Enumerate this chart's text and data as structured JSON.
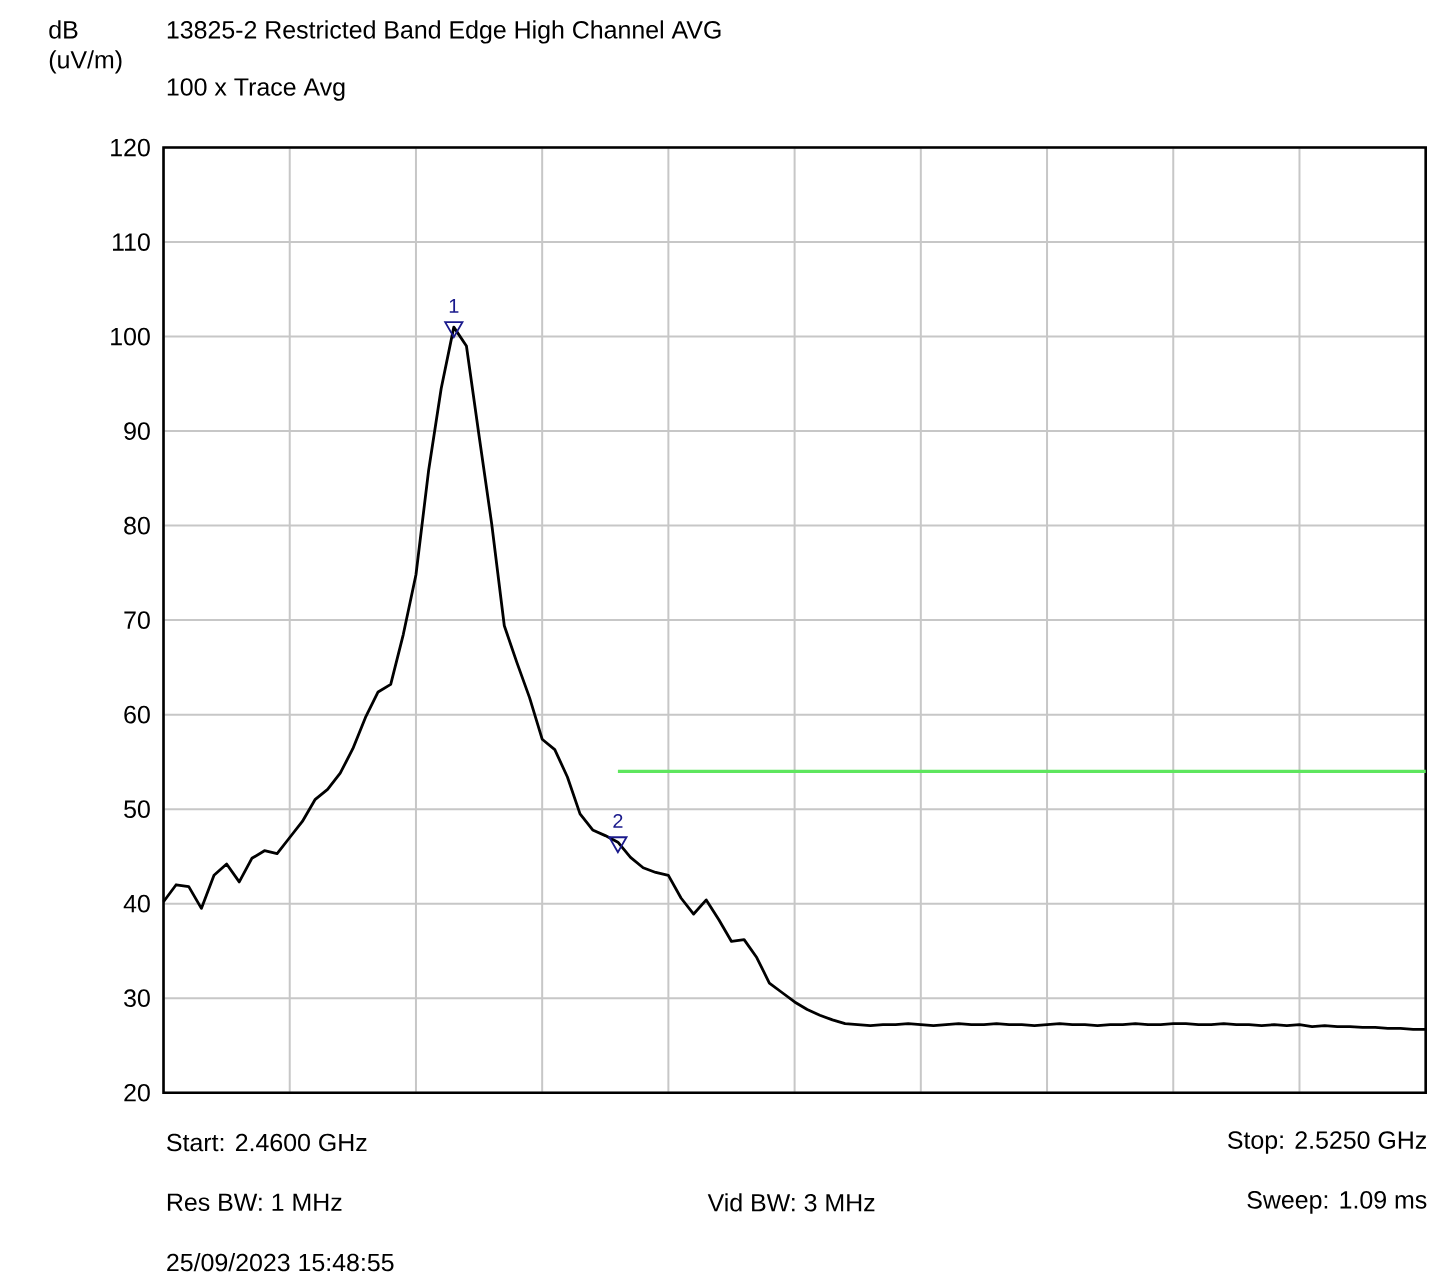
{
  "chart_data": {
    "type": "line",
    "title": "13825-2 Restricted Band Edge High Channel AVG",
    "subtitle": "100 x Trace Avg",
    "ylabel": "dB (uV/m)",
    "categories": [
      null,
      null,
      null,
      null,
      null,
      null,
      null,
      null,
      null,
      null,
      null,
      null,
      null,
      null,
      null,
      null,
      null,
      null,
      null,
      null,
      null,
      null,
      null,
      null,
      null,
      null,
      null,
      null,
      null,
      null,
      null,
      null,
      null,
      null,
      null,
      null,
      null,
      null,
      null,
      null,
      null,
      null,
      null,
      null,
      null,
      null,
      null,
      null,
      null,
      null,
      null,
      null,
      null,
      null,
      null,
      null,
      null,
      null,
      null,
      null,
      null,
      null,
      null,
      null,
      null,
      null,
      null,
      null,
      null,
      null,
      null,
      null,
      null,
      null,
      null,
      null,
      null,
      null,
      null,
      null,
      null,
      null,
      null,
      null,
      null,
      null,
      null,
      null,
      null,
      null,
      null,
      null,
      null,
      null,
      null,
      null,
      null,
      null,
      null,
      null,
      null
    ],
    "ylim": [
      20,
      120
    ],
    "yticks": [
      20,
      30,
      40,
      50,
      60,
      70,
      80,
      90,
      100,
      110,
      120
    ],
    "grid": true,
    "line_style": "solid",
    "series": [
      {
        "color": "#000000",
        "values": [
          40.2,
          42.0,
          41.8,
          39.5,
          43.0,
          44.2,
          42.3,
          44.8,
          45.6,
          45.3,
          47.0,
          48.7,
          51.0,
          52.1,
          53.8,
          56.4,
          59.7,
          62.4,
          63.2,
          68.5,
          74.8,
          85.8,
          94.5,
          101.0,
          99.0,
          89.5,
          80.2,
          69.4,
          65.5,
          61.8,
          57.4,
          56.3,
          53.4,
          49.5,
          47.8,
          47.2,
          46.5,
          44.9,
          43.8,
          43.3,
          43.0,
          40.6,
          38.9,
          40.4,
          38.3,
          36.0,
          36.2,
          34.3,
          31.6,
          30.6,
          29.6,
          28.8,
          28.2,
          27.7,
          27.3,
          27.2,
          27.1,
          27.2,
          27.2,
          27.3,
          27.2,
          27.1,
          27.2,
          27.3,
          27.2,
          27.2,
          27.3,
          27.2,
          27.2,
          27.1,
          27.2,
          27.3,
          27.2,
          27.2,
          27.1,
          27.2,
          27.2,
          27.3,
          27.2,
          27.2,
          27.3,
          27.3,
          27.2,
          27.2,
          27.3,
          27.2,
          27.2,
          27.1,
          27.2,
          27.1,
          27.2,
          27.0,
          27.1,
          27.0,
          27.0,
          26.9,
          26.9,
          26.8,
          26.8,
          26.7,
          26.7
        ]
      },
      {
        "color": "#5ee65e",
        "values": [
          null,
          null,
          null,
          null,
          null,
          null,
          null,
          null,
          null,
          null,
          null,
          null,
          null,
          null,
          null,
          null,
          null,
          null,
          null,
          null,
          null,
          null,
          null,
          null,
          null,
          null,
          null,
          null,
          null,
          null,
          null,
          null,
          null,
          null,
          null,
          null,
          54,
          54,
          54,
          54,
          54,
          54,
          54,
          54,
          54,
          54,
          54,
          54,
          54,
          54,
          54,
          54,
          54,
          54,
          54,
          54,
          54,
          54,
          54,
          54,
          54,
          54,
          54,
          54,
          54,
          54,
          54,
          54,
          54,
          54,
          54,
          54,
          54,
          54,
          54,
          54,
          54,
          54,
          54,
          54,
          54,
          54,
          54,
          54,
          54,
          54,
          54,
          54,
          54,
          54,
          54,
          54,
          54,
          54,
          54,
          54,
          54,
          54,
          54,
          54,
          54
        ]
      },
      {
        "name": "1",
        "type": "scatter",
        "marker": "triangle",
        "color": "#1a1a8c",
        "values": [
          null,
          null,
          null,
          null,
          null,
          null,
          null,
          null,
          null,
          null,
          null,
          null,
          null,
          null,
          null,
          null,
          null,
          null,
          null,
          null,
          null,
          null,
          null,
          101.0,
          null,
          null,
          null,
          null,
          null,
          null,
          null,
          null,
          null,
          null,
          null,
          null,
          null,
          null,
          null,
          null,
          null,
          null,
          null,
          null,
          null,
          null,
          null,
          null,
          null,
          null,
          null,
          null,
          null,
          null,
          null,
          null,
          null,
          null,
          null,
          null,
          null,
          null,
          null,
          null,
          null,
          null,
          null,
          null,
          null,
          null,
          null,
          null,
          null,
          null,
          null,
          null,
          null,
          null,
          null,
          null,
          null,
          null,
          null,
          null,
          null,
          null,
          null,
          null,
          null,
          null,
          null,
          null,
          null,
          null,
          null,
          null,
          null,
          null,
          null,
          null,
          null
        ]
      },
      {
        "name": "2",
        "type": "scatter",
        "marker": "triangle",
        "color": "#1a1a8c",
        "values": [
          null,
          null,
          null,
          null,
          null,
          null,
          null,
          null,
          null,
          null,
          null,
          null,
          null,
          null,
          null,
          null,
          null,
          null,
          null,
          null,
          null,
          null,
          null,
          null,
          null,
          null,
          null,
          null,
          null,
          null,
          null,
          null,
          null,
          null,
          null,
          null,
          46.5,
          null,
          null,
          null,
          null,
          null,
          null,
          null,
          null,
          null,
          null,
          null,
          null,
          null,
          null,
          null,
          null,
          null,
          null,
          null,
          null,
          null,
          null,
          null,
          null,
          null,
          null,
          null,
          null,
          null,
          null,
          null,
          null,
          null,
          null,
          null,
          null,
          null,
          null,
          null,
          null,
          null,
          null,
          null,
          null,
          null,
          null,
          null,
          null,
          null,
          null,
          null,
          null,
          null,
          null,
          null,
          null,
          null,
          null,
          null,
          null,
          null,
          null,
          null,
          null
        ]
      }
    ],
    "annotations": [
      "Start: 2.4600 GHz",
      "Stop: 2.5250 GHz",
      "Res BW: 1 MHz",
      "Vid BW: 3 MHz",
      "Sweep: 1.09 ms",
      "25/09/2023 15:48:55"
    ]
  }
}
